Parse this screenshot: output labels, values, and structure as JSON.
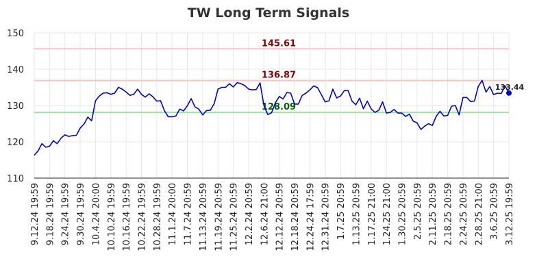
{
  "chart_data": {
    "type": "line",
    "title": "TW Long Term Signals",
    "ylim": [
      110,
      150
    ],
    "yticks": [
      110,
      120,
      130,
      140,
      150
    ],
    "grid": true,
    "x_tick_labels": [
      "9.12.24 19:59",
      "9.18.24 19:59",
      "9.24.24 19:59",
      "9.30.24 19:59",
      "10.4.24 20:00",
      "10.10.24 19:59",
      "10.16.24 19:59",
      "10.22.24 19:59",
      "10.28.24 19:59",
      "11.1.24 20:00",
      "11.7.24 20:59",
      "11.13.24 20:59",
      "11.19.24 20:59",
      "11.25.24 20:59",
      "12.2.24 20:59",
      "12.6.24 21:00",
      "12.12.24 20:59",
      "12.18.24 20:59",
      "12.24.24 17:59",
      "12.31.24 20:59",
      "1.7.25 20:59",
      "1.13.25 20:59",
      "1.17.25 21:00",
      "1.24.25 21:00",
      "1.30.25 20:59",
      "2.5.25 20:59",
      "2.11.25 20:59",
      "2.18.25 20:59",
      "2.24.25 20:59",
      "2.28.25 21:00",
      "3.6.25 20:59",
      "3.12.25 19:59"
    ],
    "series": [
      {
        "color": "#0000cc",
        "values": [
          116.3,
          117.5,
          119.5,
          118.5,
          118.8,
          120.3,
          119.5,
          121.0,
          121.9,
          121.5,
          121.7,
          121.8,
          123.8,
          124.9,
          126.8,
          125.8,
          131.3,
          132.6,
          133.4,
          133.5,
          133.1,
          133.4,
          135.0,
          134.5,
          133.7,
          132.8,
          133.1,
          134.5,
          133.1,
          132.3,
          133.2,
          132.4,
          131.2,
          131.3,
          128.6,
          126.9,
          126.9,
          127.1,
          129.0,
          128.5,
          129.9,
          131.9,
          129.6,
          129.0,
          127.4,
          128.6,
          128.7,
          130.5,
          134.5,
          135.0,
          135.0,
          136.0,
          135.1,
          136.3,
          136.0,
          135.5,
          134.5,
          134.3,
          134.4,
          136.2,
          130.0,
          127.5,
          128.0,
          130.8,
          132.5,
          131.8,
          133.6,
          133.4,
          130.4,
          130.4,
          132.8,
          133.4,
          134.3,
          135.4,
          134.9,
          133.0,
          131.0,
          131.3,
          134.5,
          132.1,
          132.6,
          134.1,
          134.1,
          131.2,
          130.2,
          132.0,
          129.1,
          131.2,
          129.1,
          128.1,
          128.7,
          131.0,
          127.9,
          128.1,
          128.9,
          127.9,
          127.9,
          127.0,
          127.6,
          125.7,
          125.2,
          123.4,
          124.3,
          125.0,
          124.5,
          127.0,
          128.4,
          127.1,
          127.3,
          129.8,
          130.0,
          127.4,
          132.2,
          132.2,
          131.1,
          131.2,
          135.3,
          136.9,
          133.7,
          135.2,
          133.0,
          133.4,
          133.3,
          135.4,
          133.44
        ]
      }
    ],
    "last_value_label": "133.44",
    "levels": [
      {
        "value": 145.61,
        "label": "145.61",
        "line_color": "#ffc0c0",
        "text_color": "#8b0000"
      },
      {
        "value": 136.87,
        "label": "136.87",
        "line_color": "#ffc0c0",
        "text_color": "#8b0000"
      },
      {
        "value": 128.09,
        "label": "128.09",
        "line_color": "#90ee90",
        "text_color": "#006400"
      }
    ]
  }
}
